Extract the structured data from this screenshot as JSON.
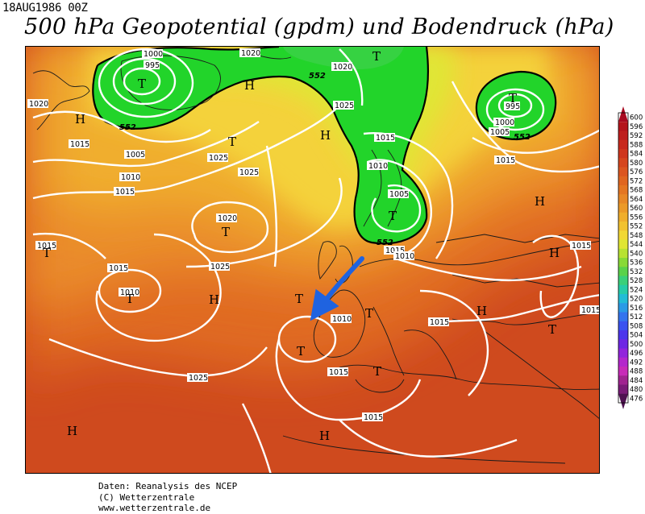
{
  "header": {
    "datestamp": "18AUG1986 00Z",
    "title": "500 hPa Geopotential (gpdm) und Bodendruck (hPa)"
  },
  "map": {
    "pressure_centers": [
      {
        "label": "T"
      },
      {
        "label": "T"
      },
      {
        "label": "T"
      },
      {
        "label": "T"
      },
      {
        "label": "T"
      },
      {
        "label": "T"
      },
      {
        "label": "T"
      },
      {
        "label": "T"
      },
      {
        "label": "T"
      },
      {
        "label": "T"
      },
      {
        "label": "T"
      },
      {
        "label": "T"
      },
      {
        "label": "T"
      },
      {
        "label": "H"
      },
      {
        "label": "H"
      },
      {
        "label": "H"
      },
      {
        "label": "H"
      },
      {
        "label": "H"
      },
      {
        "label": "H"
      },
      {
        "label": "H"
      },
      {
        "label": "H"
      },
      {
        "label": "H"
      }
    ],
    "isobar_labels": [
      "1000",
      "995",
      "1020",
      "1020",
      "1020",
      "1025",
      "1015",
      "1005",
      "1010",
      "1015",
      "1025",
      "1025",
      "1020",
      "1015",
      "1025",
      "1010",
      "1015",
      "1010",
      "1015",
      "1025",
      "1015",
      "1015",
      "1015",
      "1005",
      "1010",
      "1015",
      "1010",
      "1005",
      "1000",
      "995",
      "1015",
      "1015",
      "1015"
    ],
    "contour_labels": [
      "552",
      "552",
      "552",
      "552"
    ]
  },
  "colorbar": {
    "values": [
      "600",
      "596",
      "592",
      "588",
      "584",
      "580",
      "576",
      "572",
      "568",
      "564",
      "560",
      "556",
      "552",
      "548",
      "544",
      "540",
      "536",
      "532",
      "528",
      "524",
      "520",
      "516",
      "512",
      "508",
      "504",
      "500",
      "496",
      "492",
      "488",
      "484",
      "480",
      "476"
    ],
    "colors": [
      "#a80a20",
      "#b4141c",
      "#be1e1e",
      "#c82a1e",
      "#cf361e",
      "#d6461e",
      "#dc5620",
      "#e06620",
      "#e47622",
      "#e88826",
      "#ec9a28",
      "#f0ae2c",
      "#f2c230",
      "#f2d834",
      "#e0e632",
      "#b8e232",
      "#88da36",
      "#5ad24a",
      "#3ad07a",
      "#26cca8",
      "#22bcd6",
      "#2a9ae6",
      "#3474ee",
      "#3a52f0",
      "#4c36ec",
      "#6e28e4",
      "#9224dc",
      "#b426cc",
      "#c82ab8",
      "#a02490",
      "#7a1c78",
      "#4e1250"
    ]
  },
  "credits": {
    "line1": "Daten: Reanalysis des NCEP",
    "line2": "(C) Wetterzentrale",
    "line3": "www.wetterzentrale.de"
  },
  "colors": {
    "high_green": "#22d42a",
    "mid_yellow": "#f4d23a",
    "orange": "#ea8a2a",
    "red_south": "#c33a1c",
    "isobar": "#ffffff",
    "arrow": "#1f63e0"
  }
}
